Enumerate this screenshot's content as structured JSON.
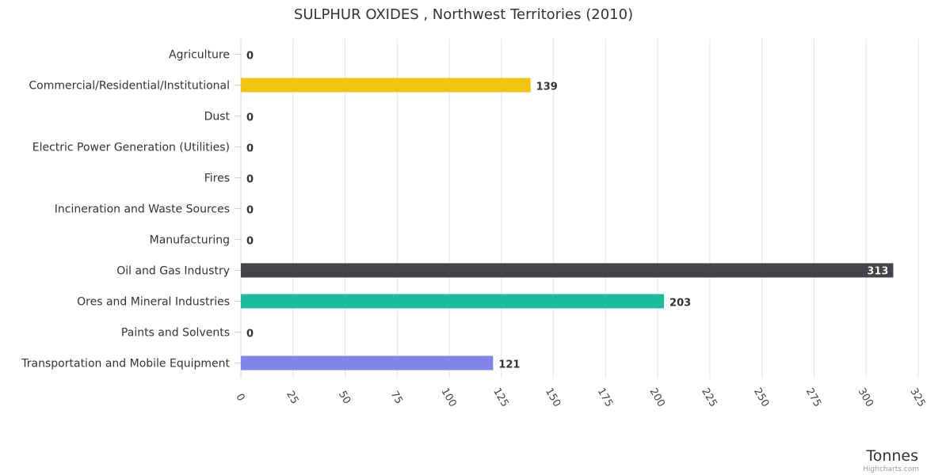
{
  "chart_data": {
    "type": "bar",
    "orientation": "horizontal",
    "title": "SULPHUR OXIDES , Northwest Territories (2010)",
    "categories": [
      "Agriculture",
      "Commercial/Residential/Institutional",
      "Dust",
      "Electric Power Generation (Utilities)",
      "Fires",
      "Incineration and Waste Sources",
      "Manufacturing",
      "Oil and Gas Industry",
      "Ores and Mineral Industries",
      "Paints and Solvents",
      "Transportation and Mobile Equipment"
    ],
    "values": [
      0,
      139,
      0,
      0,
      0,
      0,
      0,
      313,
      203,
      0,
      121
    ],
    "data_labels": [
      "0",
      "139",
      "0",
      "0",
      "0",
      "0",
      "0",
      "313",
      "203",
      "0",
      "121"
    ],
    "bar_colors": [
      "#7cb5ec",
      "#f1c40f",
      "#7cb5ec",
      "#7cb5ec",
      "#7cb5ec",
      "#7cb5ec",
      "#7cb5ec",
      "#434348",
      "#1abc9c",
      "#7cb5ec",
      "#8085e9"
    ],
    "xlim": [
      0,
      325
    ],
    "ticks": [
      0,
      25,
      50,
      75,
      100,
      125,
      150,
      175,
      200,
      225,
      250,
      275,
      300,
      325
    ],
    "value_axis_label": "Tonnes",
    "grid": true,
    "credits": "Highcharts.com"
  }
}
